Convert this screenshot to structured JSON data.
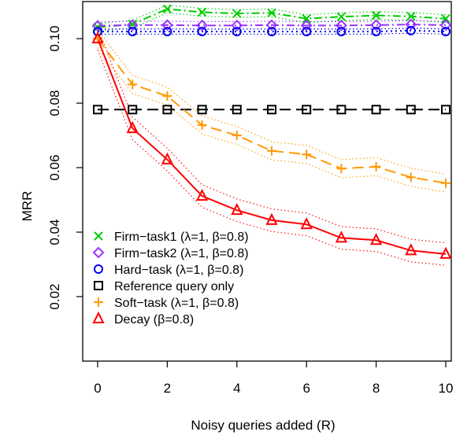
{
  "chart_data": {
    "type": "line",
    "xlabel": "Noisy queries added (R)",
    "ylabel": "MRR",
    "xlim": [
      -0.3,
      10.3
    ],
    "ylim": [
      0.0,
      0.1115
    ],
    "x_ticks": [
      0,
      2,
      4,
      6,
      8,
      10
    ],
    "y_ticks": [
      0.02,
      0.04,
      0.06,
      0.08,
      0.1
    ],
    "x_tick_labels": [
      "0",
      "2",
      "4",
      "6",
      "8",
      "10"
    ],
    "y_tick_labels": [
      "0.02",
      "0.04",
      "0.06",
      "0.08",
      "0.10"
    ],
    "legend_position": "bottom-left",
    "x": [
      0,
      1,
      2,
      3,
      4,
      5,
      6,
      7,
      8,
      9,
      10
    ],
    "series": [
      {
        "name": "Firm−task1 (λ=1, β=0.8)",
        "color": "#00cc00",
        "marker": "cross",
        "line": "dashdot",
        "values": [
          0.1035,
          0.1045,
          0.1092,
          0.1082,
          0.1078,
          0.108,
          0.1062,
          0.1068,
          0.1072,
          0.1069,
          0.1062
        ],
        "band": 0.0012
      },
      {
        "name": "Firm−task2 (λ=1, β=0.8)",
        "color": "#9933ff",
        "marker": "diamond",
        "line": "dashdot",
        "values": [
          0.104,
          0.1042,
          0.1042,
          0.1041,
          0.1041,
          0.1042,
          0.1041,
          0.1041,
          0.1042,
          0.1044,
          0.1042
        ],
        "band": 0.0012
      },
      {
        "name": "Hard−task (λ=1, β=0.8)",
        "color": "#0000ee",
        "marker": "circle",
        "line": "dotted",
        "values": [
          0.1022,
          0.1022,
          0.1022,
          0.1022,
          0.1022,
          0.1022,
          0.1022,
          0.1022,
          0.1022,
          0.1025,
          0.1022
        ],
        "band": 0.0008
      },
      {
        "name": "Reference query only",
        "color": "#000000",
        "marker": "square",
        "line": "longdash",
        "values": [
          0.078,
          0.078,
          0.078,
          0.078,
          0.078,
          0.078,
          0.078,
          0.078,
          0.078,
          0.078,
          0.078
        ],
        "band": 0
      },
      {
        "name": "Soft−task (λ=1, β=0.8)",
        "color": "#ff9900",
        "marker": "plus",
        "line": "longdash",
        "values": [
          0.1,
          0.0858,
          0.0822,
          0.0732,
          0.07,
          0.0652,
          0.0641,
          0.0597,
          0.0603,
          0.057,
          0.0552
        ],
        "band": 0.0028
      },
      {
        "name": "Decay (β=0.8)",
        "color": "#ff0000",
        "marker": "triangle",
        "line": "solid",
        "values": [
          0.1,
          0.0722,
          0.0625,
          0.0512,
          0.0468,
          0.0437,
          0.0424,
          0.0382,
          0.0375,
          0.0343,
          0.0332
        ],
        "band": 0.0035
      }
    ]
  }
}
